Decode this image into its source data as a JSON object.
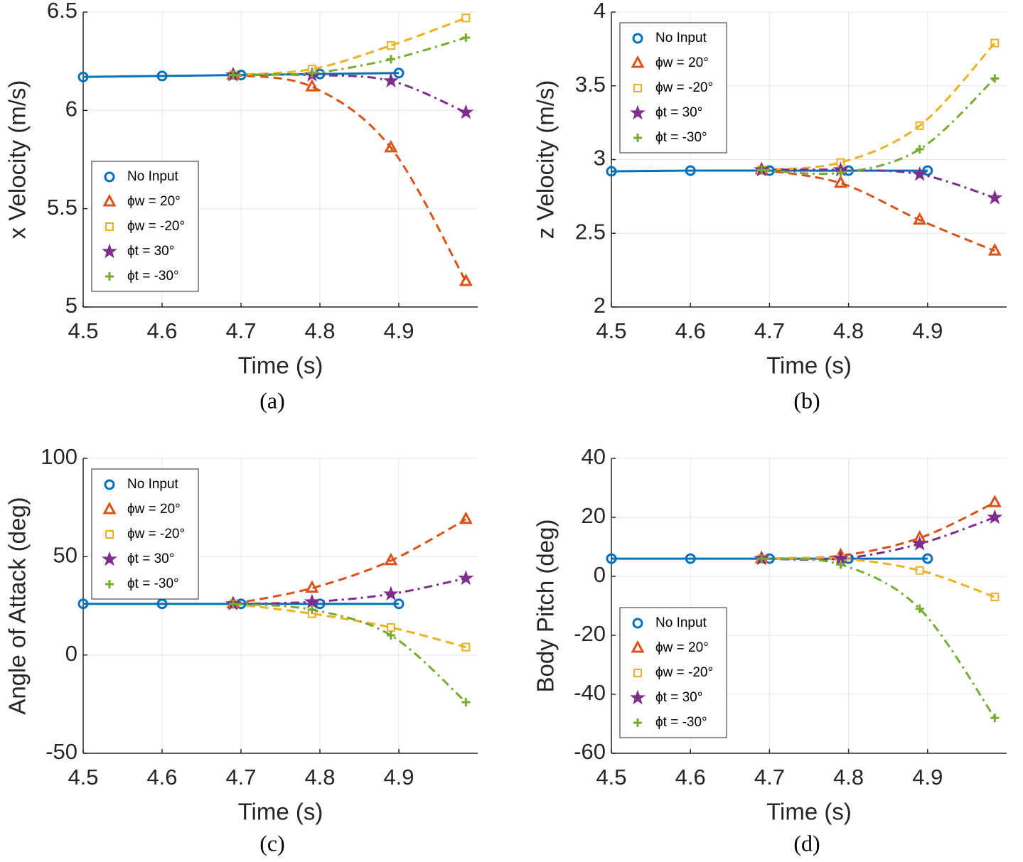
{
  "chart_data": [
    {
      "type": "line",
      "caption": "(a)",
      "xlabel": "Time (s)",
      "ylabel": "x Velocity (m/s)",
      "xlim": [
        4.5,
        5.0
      ],
      "xticks": [
        4.5,
        4.6,
        4.7,
        4.8,
        4.9
      ],
      "ylim": [
        5,
        6.5
      ],
      "yticks": [
        5,
        5.5,
        6,
        6.5
      ],
      "grid": true,
      "legend": "southwest",
      "series": [
        {
          "name": "No Input",
          "color": "#0072BD",
          "marker": "circle",
          "style": "solid",
          "x": [
            4.5,
            4.6,
            4.7,
            4.8,
            4.9
          ],
          "values": [
            6.17,
            6.175,
            6.18,
            6.185,
            6.19
          ]
        },
        {
          "name": "ϕw = 20°",
          "color": "#D95319",
          "marker": "triangle",
          "style": "dashed",
          "x": [
            4.69,
            4.79,
            4.89,
            4.985
          ],
          "values": [
            6.18,
            6.12,
            5.81,
            5.13
          ]
        },
        {
          "name": "ϕw = -20°",
          "color": "#EDB120",
          "marker": "square",
          "style": "dashed",
          "x": [
            4.69,
            4.79,
            4.89,
            4.985
          ],
          "values": [
            6.18,
            6.21,
            6.33,
            6.47
          ]
        },
        {
          "name": "ϕt = 30°",
          "color": "#7E2F8E",
          "marker": "star",
          "style": "dashdot",
          "x": [
            4.69,
            4.79,
            4.89,
            4.985
          ],
          "values": [
            6.18,
            6.18,
            6.15,
            5.99
          ]
        },
        {
          "name": "ϕt = -30°",
          "color": "#77AC30",
          "marker": "plus",
          "style": "dashdot",
          "x": [
            4.69,
            4.79,
            4.89,
            4.985
          ],
          "values": [
            6.18,
            6.19,
            6.26,
            6.37
          ]
        }
      ]
    },
    {
      "type": "line",
      "caption": "(b)",
      "xlabel": "Time (s)",
      "ylabel": "z Velocity (m/s)",
      "xlim": [
        4.5,
        5.0
      ],
      "xticks": [
        4.5,
        4.6,
        4.7,
        4.8,
        4.9
      ],
      "ylim": [
        2,
        4
      ],
      "yticks": [
        2,
        2.5,
        3,
        3.5,
        4
      ],
      "grid": true,
      "legend": "northwest",
      "series": [
        {
          "name": "No Input",
          "color": "#0072BD",
          "marker": "circle",
          "style": "solid",
          "x": [
            4.5,
            4.6,
            4.7,
            4.8,
            4.9
          ],
          "values": [
            2.92,
            2.925,
            2.925,
            2.925,
            2.925
          ]
        },
        {
          "name": "ϕw = 20°",
          "color": "#D95319",
          "marker": "triangle",
          "style": "dashed",
          "x": [
            4.69,
            4.79,
            4.89,
            4.985
          ],
          "values": [
            2.93,
            2.84,
            2.59,
            2.38
          ]
        },
        {
          "name": "ϕw = -20°",
          "color": "#EDB120",
          "marker": "square",
          "style": "dashed",
          "x": [
            4.69,
            4.79,
            4.89,
            4.985
          ],
          "values": [
            2.93,
            2.98,
            3.23,
            3.79
          ]
        },
        {
          "name": "ϕt = 30°",
          "color": "#7E2F8E",
          "marker": "star",
          "style": "dashdot",
          "x": [
            4.69,
            4.79,
            4.89,
            4.985
          ],
          "values": [
            2.93,
            2.93,
            2.9,
            2.74
          ]
        },
        {
          "name": "ϕt = -30°",
          "color": "#77AC30",
          "marker": "plus",
          "style": "dashdot",
          "x": [
            4.69,
            4.79,
            4.89,
            4.985
          ],
          "values": [
            2.93,
            2.91,
            3.07,
            3.55
          ]
        }
      ]
    },
    {
      "type": "line",
      "caption": "(c)",
      "xlabel": "Time (s)",
      "ylabel": "Angle of Attack (deg)",
      "xlim": [
        4.5,
        5.0
      ],
      "xticks": [
        4.5,
        4.6,
        4.7,
        4.8,
        4.9
      ],
      "ylim": [
        -50,
        100
      ],
      "yticks": [
        -50,
        0,
        50,
        100
      ],
      "grid": true,
      "legend": "northwest",
      "series": [
        {
          "name": "No Input",
          "color": "#0072BD",
          "marker": "circle",
          "style": "solid",
          "x": [
            4.5,
            4.6,
            4.7,
            4.8,
            4.9
          ],
          "values": [
            26,
            26,
            26,
            26,
            26
          ]
        },
        {
          "name": "ϕw = 20°",
          "color": "#D95319",
          "marker": "triangle",
          "style": "dashed",
          "x": [
            4.69,
            4.79,
            4.89,
            4.985
          ],
          "values": [
            26,
            34,
            48,
            69
          ]
        },
        {
          "name": "ϕw = -20°",
          "color": "#EDB120",
          "marker": "square",
          "style": "dashed",
          "x": [
            4.69,
            4.79,
            4.89,
            4.985
          ],
          "values": [
            26,
            21,
            14,
            4
          ]
        },
        {
          "name": "ϕt = 30°",
          "color": "#7E2F8E",
          "marker": "star",
          "style": "dashdot",
          "x": [
            4.69,
            4.79,
            4.89,
            4.985
          ],
          "values": [
            26,
            27,
            31,
            39
          ]
        },
        {
          "name": "ϕt = -30°",
          "color": "#77AC30",
          "marker": "plus",
          "style": "dashdot",
          "x": [
            4.69,
            4.79,
            4.89,
            4.985
          ],
          "values": [
            26,
            23,
            10,
            -24
          ]
        }
      ]
    },
    {
      "type": "line",
      "caption": "(d)",
      "xlabel": "Time (s)",
      "ylabel": "Body Pitch (deg)",
      "xlim": [
        4.5,
        5.0
      ],
      "xticks": [
        4.5,
        4.6,
        4.7,
        4.8,
        4.9
      ],
      "ylim": [
        -60,
        40
      ],
      "yticks": [
        -60,
        -40,
        -20,
        0,
        20,
        40
      ],
      "grid": true,
      "legend": "southwest",
      "series": [
        {
          "name": "No Input",
          "color": "#0072BD",
          "marker": "circle",
          "style": "solid",
          "x": [
            4.5,
            4.6,
            4.7,
            4.8,
            4.9
          ],
          "values": [
            6,
            6,
            6,
            6,
            6
          ]
        },
        {
          "name": "ϕw = 20°",
          "color": "#D95319",
          "marker": "triangle",
          "style": "dashed",
          "x": [
            4.69,
            4.79,
            4.89,
            4.985
          ],
          "values": [
            6,
            7,
            13,
            25
          ]
        },
        {
          "name": "ϕw = -20°",
          "color": "#EDB120",
          "marker": "square",
          "style": "dashed",
          "x": [
            4.69,
            4.79,
            4.89,
            4.985
          ],
          "values": [
            6,
            6,
            2,
            -7
          ]
        },
        {
          "name": "ϕt = 30°",
          "color": "#7E2F8E",
          "marker": "star",
          "style": "dashdot",
          "x": [
            4.69,
            4.79,
            4.89,
            4.985
          ],
          "values": [
            6,
            6,
            11,
            20
          ]
        },
        {
          "name": "ϕt = -30°",
          "color": "#77AC30",
          "marker": "plus",
          "style": "dashdot",
          "x": [
            4.69,
            4.79,
            4.89,
            4.985
          ],
          "values": [
            6,
            4,
            -11,
            -48
          ]
        }
      ]
    }
  ]
}
